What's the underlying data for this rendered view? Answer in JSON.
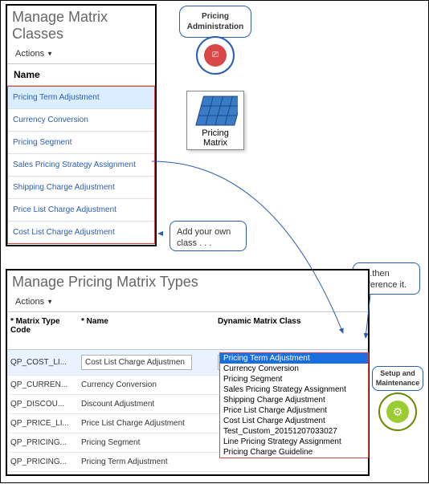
{
  "classes_panel": {
    "title": "Manage Matrix Classes",
    "actions_label": "Actions",
    "name_header": "Name",
    "items": [
      {
        "label": "Pricing Term Adjustment",
        "selected": true
      },
      {
        "label": "Currency Conversion",
        "selected": false
      },
      {
        "label": "Pricing Segment",
        "selected": false
      },
      {
        "label": "Sales Pricing Strategy Assignment",
        "selected": false
      },
      {
        "label": "Shipping Charge Adjustment",
        "selected": false
      },
      {
        "label": "Price List Charge Adjustment",
        "selected": false
      },
      {
        "label": "Cost List Charge Adjustment",
        "selected": false
      }
    ]
  },
  "types_panel": {
    "title": "Manage Pricing Matrix Types",
    "actions_label": "Actions",
    "col_code": "Matrix Type Code",
    "col_name": "Name",
    "col_class": "Dynamic Matrix Class",
    "rows": [
      {
        "code": "QP_COST_LI...",
        "name": "Cost List Charge Adjustmen",
        "class_val": "Cost List Charge Adjustmen",
        "selected": true,
        "editable": true
      },
      {
        "code": "QP_CURREN...",
        "name": "Currency Conversion",
        "selected": false
      },
      {
        "code": "QP_DISCOU...",
        "name": "Discount Adjustment",
        "selected": false
      },
      {
        "code": "QP_PRICE_LI...",
        "name": "Price List Charge Adjustment",
        "selected": false
      },
      {
        "code": "QP_PRICING...",
        "name": "Pricing Segment",
        "selected": false
      },
      {
        "code": "QP_PRICING...",
        "name": "Pricing Term Adjustment",
        "selected": false
      }
    ]
  },
  "dropdown": {
    "items": [
      "Pricing Term Adjustment",
      "Currency Conversion",
      "Pricing Segment",
      "Sales Pricing Strategy Assignment",
      "Shipping Charge Adjustment",
      "Price List Charge Adjustment",
      "Cost List Charge Adjustment",
      "Test_Custom_20151207033027",
      "Line Pricing Strategy Assignment",
      "Pricing Charge Guideline"
    ],
    "highlight_index": 0
  },
  "callouts": {
    "pricing_admin": "Pricing Administration",
    "add_class": "Add your own class . . .",
    "reference": ". . .then reference it.",
    "setup": "Setup and Maintenance"
  },
  "icons": {
    "pricing_admin_glyph": "⎚",
    "setup_glyph": "⚙",
    "pricing_matrix_label": "Pricing Matrix"
  },
  "colors": {
    "link": "#2a5db0",
    "highlight_row": "#dbeeff",
    "dropdown_hl": "#1a6fe0",
    "red_border": "#d44",
    "admin_red": "#d94848",
    "setup_green": "#9acd32"
  }
}
